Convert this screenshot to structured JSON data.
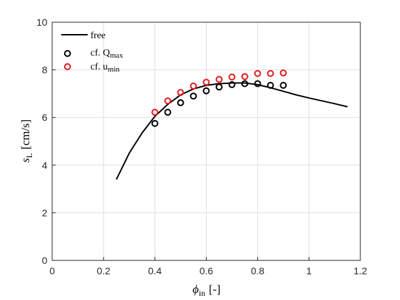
{
  "chart_data": {
    "type": "line",
    "xlabel": {
      "main": "ϕ",
      "sub": "in",
      "unit": "[-]"
    },
    "ylabel": {
      "main": "s",
      "sub": "L",
      "unit": "[cm/s]"
    },
    "xlim": [
      0,
      1.2
    ],
    "ylim": [
      0,
      10
    ],
    "xticks": [
      0,
      0.2,
      0.4,
      0.6,
      0.8,
      1,
      1.2
    ],
    "xtick_labels": [
      "0",
      "0.2",
      "0.4",
      "0.6",
      "0.8",
      "1",
      "1.2"
    ],
    "yticks": [
      0,
      2,
      4,
      6,
      8,
      10
    ],
    "ytick_labels": [
      "0",
      "2",
      "4",
      "6",
      "8",
      "10"
    ],
    "grid": true,
    "legend_position": "top-left",
    "series": [
      {
        "name": "free",
        "style": "line",
        "color": "#000000",
        "x": [
          0.25,
          0.3,
          0.35,
          0.4,
          0.45,
          0.5,
          0.55,
          0.6,
          0.65,
          0.7,
          0.75,
          0.8,
          0.85,
          0.9,
          0.95,
          1.0,
          1.05,
          1.1,
          1.15
        ],
        "y": [
          3.4,
          4.5,
          5.35,
          6.05,
          6.55,
          6.95,
          7.2,
          7.35,
          7.42,
          7.45,
          7.45,
          7.38,
          7.25,
          7.1,
          6.95,
          6.82,
          6.7,
          6.58,
          6.45
        ]
      },
      {
        "name": "cf. Q",
        "name_sub": "max",
        "style": "markers",
        "color": "#000000",
        "x": [
          0.4,
          0.45,
          0.5,
          0.55,
          0.6,
          0.65,
          0.7,
          0.75,
          0.8,
          0.85,
          0.9
        ],
        "y": [
          5.75,
          6.22,
          6.62,
          6.9,
          7.12,
          7.28,
          7.38,
          7.42,
          7.42,
          7.35,
          7.35
        ]
      },
      {
        "name": "cf. u",
        "name_sub": "min",
        "style": "markers",
        "color": "#e41a1c",
        "x": [
          0.4,
          0.45,
          0.5,
          0.55,
          0.6,
          0.65,
          0.7,
          0.75,
          0.8,
          0.85,
          0.9
        ],
        "y": [
          6.22,
          6.7,
          7.05,
          7.32,
          7.48,
          7.6,
          7.7,
          7.72,
          7.85,
          7.85,
          7.87
        ]
      }
    ]
  }
}
